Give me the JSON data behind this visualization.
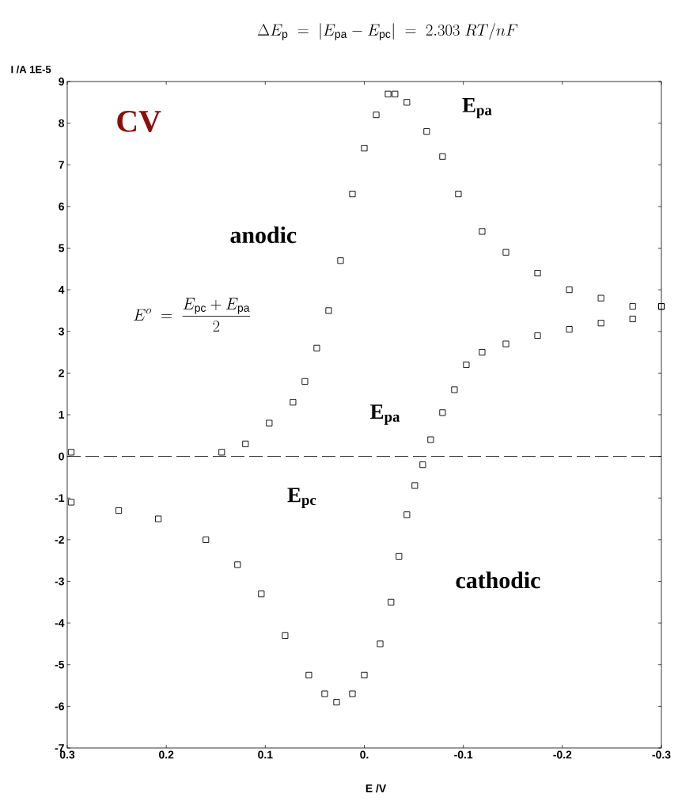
{
  "chart_data": {
    "type": "scatter",
    "title": "\\Delta E_{\\mathrm{p}} \\;=\\; \\left|E_{\\mathrm{pa}} - E_{\\mathrm{pc}}\\right| \\;=\\; 2.303\\;RT/nF",
    "xlabel": "E /V",
    "ylabel": "I /A  1E-5",
    "marker": "square",
    "xlim": [
      0.3,
      -0.3
    ],
    "ylim": [
      -7,
      9
    ],
    "xticks": [
      0.3,
      0.2,
      0.1,
      {
        "value": 0,
        "label": "0."
      },
      -0.1,
      -0.2,
      -0.3
    ],
    "yticks": [
      -7,
      -6,
      -5,
      -4,
      -3,
      -2,
      -1,
      0,
      1,
      2,
      3,
      4,
      5,
      6,
      7,
      8,
      9
    ],
    "ref_lines": [
      {
        "axis": "y",
        "value": 0,
        "line_style": "dashed"
      }
    ],
    "annotations": [
      "CV",
      "anodic",
      "E^{o} \\;=\\; \\frac{E_{\\mathrm{pc}} + E_{\\mathrm{pa}}}{2}",
      "E$_{pa}$",
      "E$_{pa}$",
      "E$_{pc}$",
      "cathodic"
    ],
    "series": [
      {
        "color": "#000000",
        "x": [
          0.296,
          0.144,
          0.12,
          0.096,
          0.072,
          0.06,
          0.048,
          0.036,
          0.024,
          0.012,
          0.0,
          -0.012,
          -0.024,
          -0.031,
          -0.043,
          -0.063,
          -0.079,
          -0.095,
          -0.119,
          -0.143,
          -0.175,
          -0.207,
          -0.239,
          -0.271,
          -0.3
        ],
        "values": [
          0.1,
          0.1,
          0.3,
          0.8,
          1.3,
          1.8,
          2.6,
          3.5,
          4.7,
          6.3,
          7.4,
          8.2,
          8.7,
          8.7,
          8.5,
          7.8,
          7.2,
          6.3,
          5.4,
          4.9,
          4.4,
          4.0,
          3.8,
          3.6,
          3.6
        ]
      },
      {
        "color": "#000000",
        "x": [
          -0.3,
          -0.271,
          -0.239,
          -0.207,
          -0.175,
          -0.143,
          -0.119,
          -0.103,
          -0.091,
          -0.079,
          -0.067,
          -0.059,
          -0.051,
          -0.043,
          -0.035,
          -0.027,
          -0.016,
          0.0,
          0.012,
          0.028,
          0.04,
          0.056,
          0.08,
          0.104,
          0.128,
          0.16,
          0.208,
          0.248,
          0.296
        ],
        "values": [
          3.6,
          3.3,
          3.2,
          3.05,
          2.9,
          2.7,
          2.5,
          2.2,
          1.6,
          1.05,
          0.4,
          -0.2,
          -0.7,
          -1.4,
          -2.4,
          -3.5,
          -4.5,
          -5.25,
          -5.7,
          -5.9,
          -5.7,
          -5.25,
          -4.3,
          -3.3,
          -2.6,
          -2.0,
          -1.5,
          -1.3,
          -1.1
        ]
      }
    ]
  }
}
